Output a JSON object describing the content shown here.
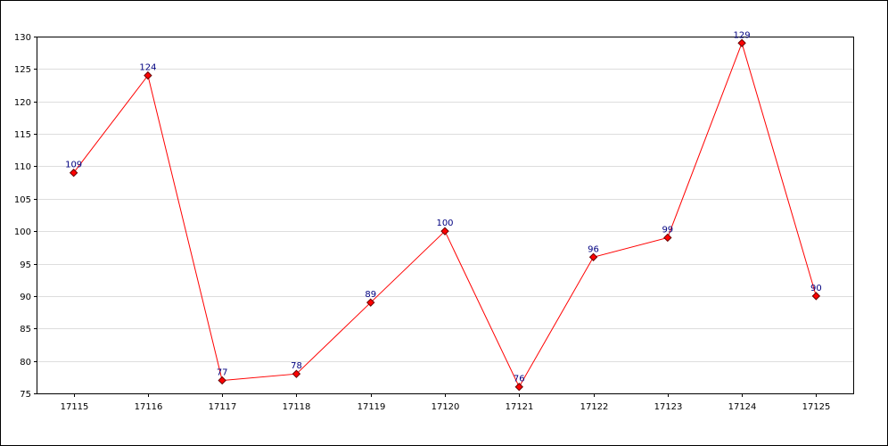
{
  "chart_data": {
    "type": "line",
    "title": "",
    "xlabel": "",
    "ylabel": "",
    "categories": [
      "17115",
      "17116",
      "17117",
      "17118",
      "17119",
      "17120",
      "17121",
      "17122",
      "17123",
      "17124",
      "17125"
    ],
    "series": [
      {
        "values": [
          109,
          124,
          77,
          78,
          89,
          100,
          76,
          96,
          99,
          129,
          90
        ],
        "color": "#ff0000"
      }
    ],
    "ylim": [
      75,
      130
    ],
    "yticks": [
      75,
      80,
      85,
      90,
      95,
      100,
      105,
      110,
      115,
      120,
      125,
      130
    ],
    "grid": true,
    "legend": "none",
    "data_labels": true,
    "colors": {
      "line": "#ff0000",
      "marker_fill": "#ff0000",
      "marker_stroke": "#660000",
      "data_label": "#000080",
      "grid": "#dddddd",
      "axis": "#000000"
    }
  }
}
